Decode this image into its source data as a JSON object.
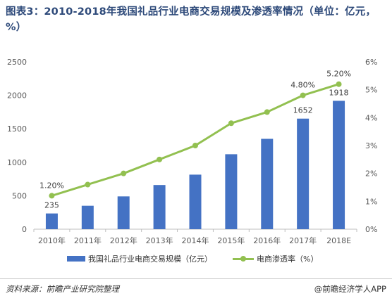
{
  "title": "图表3：2010-2018年我国礼品行业电商交易规模及渗透率情况（单位：亿元，%）",
  "source": "资料来源：前瞻产业研究院整理",
  "brand": "@前瞻经济学人APP",
  "colors": {
    "bar": "#4472c4",
    "line": "#92c050",
    "axis": "#bfbfbf",
    "text": "#595959",
    "title": "#2e4a7a"
  },
  "chart_data": {
    "type": "bar",
    "categories": [
      "2010年",
      "2011年",
      "2012年",
      "2013年",
      "2014年",
      "2015年",
      "2016年",
      "2017年",
      "2018E"
    ],
    "series": [
      {
        "name": "我国礼品行业电商交易规模（亿元）",
        "type": "bar",
        "axis": "left",
        "values": [
          235,
          350,
          490,
          660,
          815,
          1120,
          1350,
          1652,
          1918
        ]
      },
      {
        "name": "电商渗透率（%）",
        "type": "line",
        "axis": "right",
        "values": [
          1.2,
          1.6,
          2.0,
          2.5,
          3.0,
          3.8,
          4.2,
          4.8,
          5.2
        ]
      }
    ],
    "y_left": {
      "min": 0,
      "max": 2500,
      "ticks": [
        "0",
        "500",
        "1000",
        "1500",
        "2000",
        "2500"
      ]
    },
    "y_right": {
      "min": 0,
      "max": 6,
      "ticks": [
        "0%",
        "1%",
        "2%",
        "3%",
        "4%",
        "5%",
        "6%"
      ]
    },
    "bar_labels": [
      {
        "index": 0,
        "text": "235"
      },
      {
        "index": 7,
        "text": "1652"
      },
      {
        "index": 8,
        "text": "1918"
      }
    ],
    "line_labels": [
      {
        "index": 0,
        "text": "1.20%"
      },
      {
        "index": 7,
        "text": "4.80%"
      },
      {
        "index": 8,
        "text": "5.20%"
      }
    ],
    "grid": false,
    "legend_position": "bottom"
  }
}
